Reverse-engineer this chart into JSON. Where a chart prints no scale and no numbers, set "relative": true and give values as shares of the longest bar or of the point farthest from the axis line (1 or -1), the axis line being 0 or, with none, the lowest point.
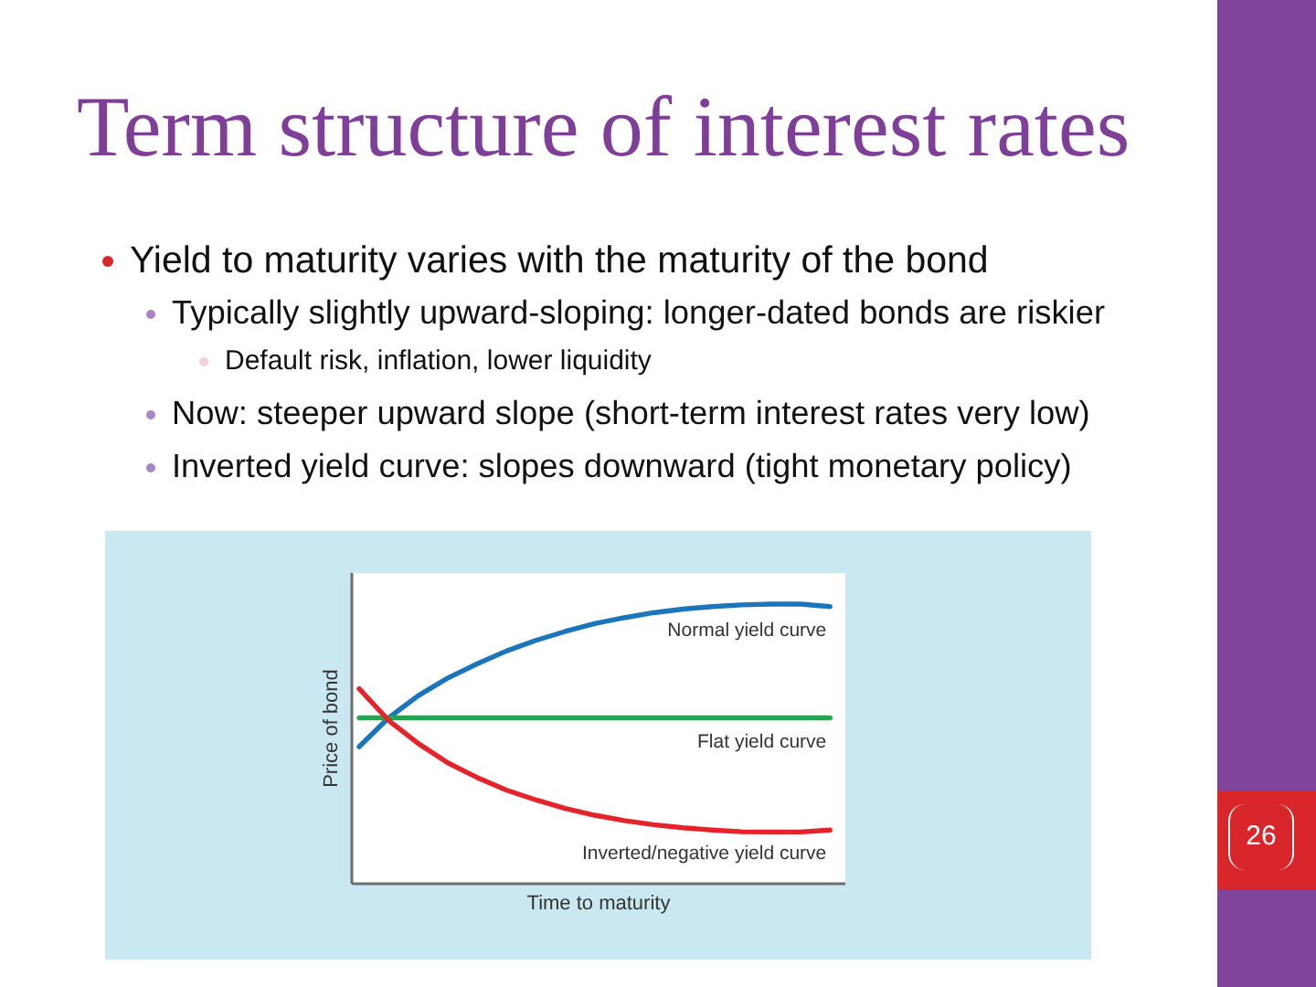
{
  "chart_data": {
    "type": "line",
    "title": "Term structure of interest rates",
    "annotations": [
      "Yield to maturity varies with the maturity of the bond",
      "Typically slightly upward-sloping: longer-dated bonds are riskier",
      "Default risk, inflation, lower liquidity",
      "Now: steeper upward slope (short-term interest rates very low)",
      "Inverted yield curve: slopes downward (tight monetary policy)",
      "26"
    ],
    "xlabel": "Time to maturity",
    "ylabel": "Price of bond",
    "categories": [
      null,
      null,
      null,
      null,
      null,
      null,
      null,
      null,
      null,
      null,
      null,
      null,
      null,
      null,
      null,
      null,
      null
    ],
    "relative": true,
    "line_style": "solid",
    "series": [
      {
        "name": "Normal yield curve",
        "color": "#1b75bb",
        "values": [
          0.49,
          0.593,
          0.672,
          0.735,
          0.786,
          0.832,
          0.87,
          0.902,
          0.93,
          0.951,
          0.969,
          0.982,
          0.991,
          0.997,
          1.0,
          1.0,
          0.991
        ]
      },
      {
        "name": "Flat yield curve",
        "color": "#1fa84f",
        "values": [
          0.593,
          0.593,
          0.593,
          0.593,
          0.593,
          0.593,
          0.593,
          0.593,
          0.593,
          0.593,
          0.593,
          0.593,
          0.593,
          0.593,
          0.593,
          0.593,
          0.593
        ]
      },
      {
        "name": "Inverted/negative yield curve",
        "color": "#e3242b",
        "values": [
          0.697,
          0.584,
          0.502,
          0.433,
          0.38,
          0.335,
          0.3,
          0.269,
          0.245,
          0.226,
          0.211,
          0.2,
          0.192,
          0.186,
          0.185,
          0.185,
          0.192
        ]
      }
    ]
  }
}
